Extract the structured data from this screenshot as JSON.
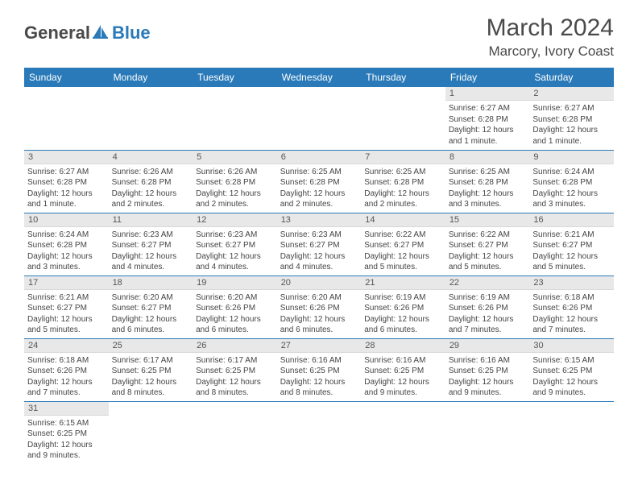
{
  "brand": {
    "primary": "General",
    "secondary": "Blue"
  },
  "title": "March 2024",
  "location": "Marcory, Ivory Coast",
  "colors": {
    "header_bg": "#2a7ab9",
    "header_text": "#ffffff",
    "daynum_bg": "#e8e8e8",
    "border": "#2a7ab9",
    "text": "#444444"
  },
  "weekdays": [
    "Sunday",
    "Monday",
    "Tuesday",
    "Wednesday",
    "Thursday",
    "Friday",
    "Saturday"
  ],
  "weeks": [
    [
      null,
      null,
      null,
      null,
      null,
      {
        "n": "1",
        "sr": "6:27 AM",
        "ss": "6:28 PM",
        "dl": "12 hours and 1 minute."
      },
      {
        "n": "2",
        "sr": "6:27 AM",
        "ss": "6:28 PM",
        "dl": "12 hours and 1 minute."
      }
    ],
    [
      {
        "n": "3",
        "sr": "6:27 AM",
        "ss": "6:28 PM",
        "dl": "12 hours and 1 minute."
      },
      {
        "n": "4",
        "sr": "6:26 AM",
        "ss": "6:28 PM",
        "dl": "12 hours and 2 minutes."
      },
      {
        "n": "5",
        "sr": "6:26 AM",
        "ss": "6:28 PM",
        "dl": "12 hours and 2 minutes."
      },
      {
        "n": "6",
        "sr": "6:25 AM",
        "ss": "6:28 PM",
        "dl": "12 hours and 2 minutes."
      },
      {
        "n": "7",
        "sr": "6:25 AM",
        "ss": "6:28 PM",
        "dl": "12 hours and 2 minutes."
      },
      {
        "n": "8",
        "sr": "6:25 AM",
        "ss": "6:28 PM",
        "dl": "12 hours and 3 minutes."
      },
      {
        "n": "9",
        "sr": "6:24 AM",
        "ss": "6:28 PM",
        "dl": "12 hours and 3 minutes."
      }
    ],
    [
      {
        "n": "10",
        "sr": "6:24 AM",
        "ss": "6:28 PM",
        "dl": "12 hours and 3 minutes."
      },
      {
        "n": "11",
        "sr": "6:23 AM",
        "ss": "6:27 PM",
        "dl": "12 hours and 4 minutes."
      },
      {
        "n": "12",
        "sr": "6:23 AM",
        "ss": "6:27 PM",
        "dl": "12 hours and 4 minutes."
      },
      {
        "n": "13",
        "sr": "6:23 AM",
        "ss": "6:27 PM",
        "dl": "12 hours and 4 minutes."
      },
      {
        "n": "14",
        "sr": "6:22 AM",
        "ss": "6:27 PM",
        "dl": "12 hours and 5 minutes."
      },
      {
        "n": "15",
        "sr": "6:22 AM",
        "ss": "6:27 PM",
        "dl": "12 hours and 5 minutes."
      },
      {
        "n": "16",
        "sr": "6:21 AM",
        "ss": "6:27 PM",
        "dl": "12 hours and 5 minutes."
      }
    ],
    [
      {
        "n": "17",
        "sr": "6:21 AM",
        "ss": "6:27 PM",
        "dl": "12 hours and 5 minutes."
      },
      {
        "n": "18",
        "sr": "6:20 AM",
        "ss": "6:27 PM",
        "dl": "12 hours and 6 minutes."
      },
      {
        "n": "19",
        "sr": "6:20 AM",
        "ss": "6:26 PM",
        "dl": "12 hours and 6 minutes."
      },
      {
        "n": "20",
        "sr": "6:20 AM",
        "ss": "6:26 PM",
        "dl": "12 hours and 6 minutes."
      },
      {
        "n": "21",
        "sr": "6:19 AM",
        "ss": "6:26 PM",
        "dl": "12 hours and 6 minutes."
      },
      {
        "n": "22",
        "sr": "6:19 AM",
        "ss": "6:26 PM",
        "dl": "12 hours and 7 minutes."
      },
      {
        "n": "23",
        "sr": "6:18 AM",
        "ss": "6:26 PM",
        "dl": "12 hours and 7 minutes."
      }
    ],
    [
      {
        "n": "24",
        "sr": "6:18 AM",
        "ss": "6:26 PM",
        "dl": "12 hours and 7 minutes."
      },
      {
        "n": "25",
        "sr": "6:17 AM",
        "ss": "6:25 PM",
        "dl": "12 hours and 8 minutes."
      },
      {
        "n": "26",
        "sr": "6:17 AM",
        "ss": "6:25 PM",
        "dl": "12 hours and 8 minutes."
      },
      {
        "n": "27",
        "sr": "6:16 AM",
        "ss": "6:25 PM",
        "dl": "12 hours and 8 minutes."
      },
      {
        "n": "28",
        "sr": "6:16 AM",
        "ss": "6:25 PM",
        "dl": "12 hours and 9 minutes."
      },
      {
        "n": "29",
        "sr": "6:16 AM",
        "ss": "6:25 PM",
        "dl": "12 hours and 9 minutes."
      },
      {
        "n": "30",
        "sr": "6:15 AM",
        "ss": "6:25 PM",
        "dl": "12 hours and 9 minutes."
      }
    ],
    [
      {
        "n": "31",
        "sr": "6:15 AM",
        "ss": "6:25 PM",
        "dl": "12 hours and 9 minutes."
      },
      null,
      null,
      null,
      null,
      null,
      null
    ]
  ],
  "labels": {
    "sunrise": "Sunrise:",
    "sunset": "Sunset:",
    "daylight": "Daylight:"
  }
}
